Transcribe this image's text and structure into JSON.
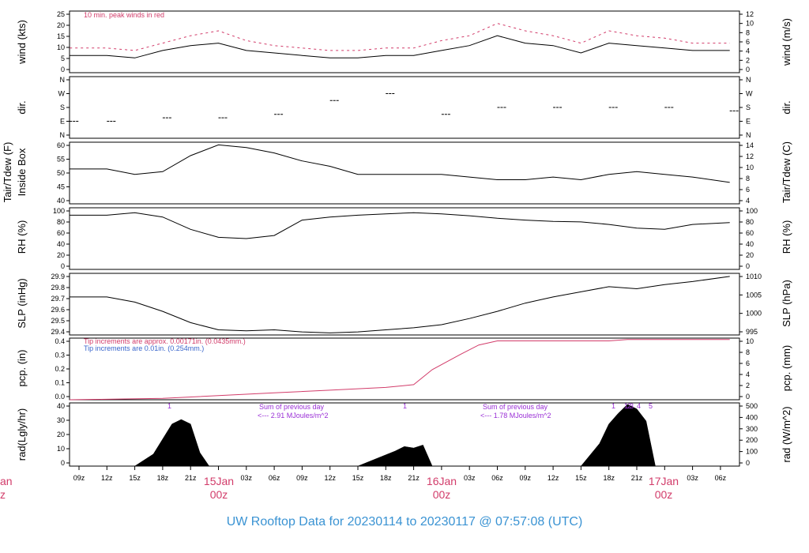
{
  "title": "UW Rooftop Data for 20230114  to  20230117 @ 07:57:08  (UTC)",
  "colors": {
    "accent": "#d23c6a",
    "title": "#3a93d3",
    "purple": "#9a2fd6",
    "blue": "#3a66cc"
  },
  "x_ticks": [
    "09z",
    "12z",
    "15z",
    "18z",
    "21z",
    "03z",
    "06z",
    "09z",
    "12z",
    "15z",
    "18z",
    "21z",
    "03z",
    "06z",
    "09z",
    "12z",
    "15z",
    "18z",
    "21z",
    "03z",
    "06z"
  ],
  "day_labels": [
    {
      "day": "15Jan",
      "hour": "00z"
    },
    {
      "day": "16Jan",
      "hour": "00z"
    },
    {
      "day": "17Jan",
      "hour": "00z"
    }
  ],
  "left_edge_labels": {
    "day": "an",
    "hour": "z"
  },
  "panels": {
    "wind": {
      "ylabel_left": "wind (kts)",
      "ylabel_right": "wind (m/s)",
      "left_ticks": [
        "25",
        "20",
        "15",
        "10",
        "5",
        "0"
      ],
      "right_ticks": [
        "12",
        "10",
        "8",
        "6",
        "4",
        "2",
        "0"
      ],
      "note": "10 min. peak winds in red"
    },
    "dir": {
      "ylabel_left": "dir.",
      "ylabel_right": "dir.",
      "left_ticks": [
        "N",
        "W",
        "S",
        "E",
        "N"
      ],
      "right_ticks": [
        "N",
        "W",
        "S",
        "E",
        "N"
      ]
    },
    "temp": {
      "ylabel_left_1": "Tair/Tdew (F)",
      "ylabel_left_2": "Inside Box",
      "ylabel_right": "Tair/Tdew (C)",
      "left_ticks": [
        "60",
        "55",
        "50",
        "45",
        "40"
      ],
      "right_ticks": [
        "14",
        "12",
        "10",
        "8",
        "6",
        "4"
      ]
    },
    "rh": {
      "ylabel_left": "RH (%)",
      "ylabel_right": "RH (%)",
      "left_ticks": [
        "100",
        "80",
        "60",
        "40",
        "20",
        "0"
      ],
      "right_ticks": [
        "100",
        "80",
        "60",
        "40",
        "20",
        "0"
      ]
    },
    "slp": {
      "ylabel_left": "SLP (inHg)",
      "ylabel_right": "SLP (hPa)",
      "left_ticks": [
        "29.9",
        "29.8",
        "29.7",
        "29.6",
        "29.5",
        "29.4"
      ],
      "right_ticks": [
        "1010",
        "1005",
        "1000",
        "995"
      ]
    },
    "pcp": {
      "ylabel_left": "pcp. (in)",
      "ylabel_right": "pcp. (mm)",
      "left_ticks": [
        "0.4",
        "0.3",
        "0.2",
        "0.1",
        "0.0"
      ],
      "right_ticks": [
        "10",
        "8",
        "6",
        "4",
        "2",
        "0"
      ],
      "note1": "Tip increments are approx. 0.00171in. (0.0435mm.)",
      "note2": "Tip increments are 0.01in. (0.254mm.)"
    },
    "rad": {
      "ylabel_left": "rad(Lgly/hr)",
      "ylabel_right": "rad (W/m^2)",
      "left_ticks": [
        "40",
        "30",
        "20",
        "10",
        "0"
      ],
      "right_ticks": [
        "500",
        "400",
        "300",
        "200",
        "100",
        "0"
      ],
      "sum1_a": "Sum of previous day",
      "sum1_b": "<--- 2.91 MJoules/m^2",
      "sum2_a": "Sum of previous day",
      "sum2_b": "<--- 1.78 MJoules/m^2",
      "markers": [
        "1",
        "1",
        "1",
        "1",
        "2",
        "3",
        "4",
        "5"
      ]
    }
  },
  "chart_data": [
    {
      "type": "line",
      "title": "",
      "ylabel": "wind (kts)",
      "ylim": [
        0,
        25
      ],
      "x": [
        "14Jan 08z",
        "14Jan 12z",
        "14Jan 15z",
        "14Jan 18z",
        "14Jan 21z",
        "15Jan 00z",
        "15Jan 03z",
        "15Jan 06z",
        "15Jan 09z",
        "15Jan 12z",
        "15Jan 15z",
        "15Jan 18z",
        "15Jan 21z",
        "16Jan 00z",
        "16Jan 03z",
        "16Jan 06z",
        "16Jan 09z",
        "16Jan 12z",
        "16Jan 15z",
        "16Jan 18z",
        "16Jan 21z",
        "17Jan 00z",
        "17Jan 03z",
        "17Jan 07z"
      ],
      "series": [
        {
          "values": [
            7,
            7,
            6,
            9,
            11,
            12,
            9,
            8,
            7,
            6,
            6,
            7,
            7,
            9,
            11,
            15,
            12,
            11,
            8,
            12,
            11,
            10,
            9,
            9
          ]
        },
        {
          "name": "10 min. peak winds in red",
          "values": [
            10,
            10,
            9,
            12,
            15,
            17,
            13,
            11,
            10,
            9,
            9,
            10,
            10,
            13,
            15,
            20,
            17,
            15,
            12,
            17,
            15,
            14,
            12,
            12
          ]
        }
      ]
    },
    {
      "type": "scatter",
      "ylabel": "dir.",
      "yticks": [
        "N",
        "E",
        "S",
        "W",
        "N"
      ],
      "x": [
        "14Jan 08z",
        "14Jan 12z",
        "14Jan 18z",
        "15Jan 00z",
        "15Jan 06z",
        "15Jan 12z",
        "15Jan 18z",
        "16Jan 00z",
        "16Jan 06z",
        "16Jan 12z",
        "16Jan 18z",
        "17Jan 00z",
        "17Jan 07z"
      ],
      "values": [
        "E",
        "E",
        "ESE",
        "ESE",
        "SE",
        "SW",
        "W",
        "SE",
        "S",
        "S",
        "S",
        "S",
        "SSE"
      ]
    },
    {
      "type": "line",
      "ylabel": "Tair/Tdew (F)",
      "ylim": [
        37,
        60
      ],
      "x": [
        "14Jan 08z",
        "14Jan 12z",
        "14Jan 15z",
        "14Jan 18z",
        "14Jan 21z",
        "15Jan 00z",
        "15Jan 03z",
        "15Jan 06z",
        "15Jan 09z",
        "15Jan 12z",
        "15Jan 15z",
        "15Jan 18z",
        "15Jan 21z",
        "16Jan 00z",
        "16Jan 03z",
        "16Jan 06z",
        "16Jan 09z",
        "16Jan 12z",
        "16Jan 15z",
        "16Jan 18z",
        "16Jan 21z",
        "17Jan 00z",
        "17Jan 03z",
        "17Jan 07z"
      ],
      "series": [
        {
          "values": [
            50,
            50,
            48,
            49,
            55,
            59,
            58,
            56,
            53,
            51,
            48,
            48,
            48,
            48,
            47,
            46,
            46,
            47,
            46,
            48,
            49,
            48,
            47,
            45
          ]
        }
      ]
    },
    {
      "type": "line",
      "ylabel": "RH (%)",
      "ylim": [
        0,
        100
      ],
      "x": [
        "14Jan 08z",
        "14Jan 12z",
        "14Jan 15z",
        "14Jan 18z",
        "14Jan 21z",
        "15Jan 00z",
        "15Jan 03z",
        "15Jan 06z",
        "15Jan 09z",
        "15Jan 12z",
        "15Jan 15z",
        "15Jan 18z",
        "15Jan 21z",
        "16Jan 00z",
        "16Jan 03z",
        "16Jan 06z",
        "16Jan 09z",
        "16Jan 12z",
        "16Jan 15z",
        "16Jan 18z",
        "16Jan 21z",
        "17Jan 00z",
        "17Jan 03z",
        "17Jan 07z"
      ],
      "series": [
        {
          "values": [
            88,
            88,
            92,
            85,
            65,
            52,
            50,
            55,
            80,
            85,
            88,
            90,
            92,
            90,
            87,
            83,
            80,
            78,
            77,
            73,
            67,
            65,
            73,
            76
          ]
        }
      ]
    },
    {
      "type": "line",
      "ylabel": "SLP (inHg)",
      "ylim": [
        29.35,
        29.95
      ],
      "x": [
        "14Jan 08z",
        "14Jan 12z",
        "14Jan 15z",
        "14Jan 18z",
        "14Jan 21z",
        "15Jan 00z",
        "15Jan 03z",
        "15Jan 06z",
        "15Jan 09z",
        "15Jan 12z",
        "15Jan 15z",
        "15Jan 18z",
        "15Jan 21z",
        "16Jan 00z",
        "16Jan 03z",
        "16Jan 06z",
        "16Jan 09z",
        "16Jan 12z",
        "16Jan 15z",
        "16Jan 18z",
        "16Jan 21z",
        "17Jan 00z",
        "17Jan 03z",
        "17Jan 07z"
      ],
      "series": [
        {
          "values": [
            29.72,
            29.72,
            29.67,
            29.58,
            29.47,
            29.4,
            29.39,
            29.4,
            29.38,
            29.37,
            29.38,
            29.4,
            29.42,
            29.45,
            29.51,
            29.58,
            29.66,
            29.72,
            29.77,
            29.82,
            29.8,
            29.84,
            29.87,
            29.92
          ]
        }
      ]
    },
    {
      "type": "line",
      "ylabel": "pcp. (in)",
      "ylim": [
        0,
        0.45
      ],
      "x": [
        "14Jan 08z",
        "14Jan 18z",
        "15Jan 00z",
        "15Jan 06z",
        "15Jan 12z",
        "15Jan 18z",
        "15Jan 21z",
        "15Jan 23z",
        "16Jan 02z",
        "16Jan 04z",
        "16Jan 06z",
        "16Jan 12z",
        "16Jan 18z",
        "16Jan 20z",
        "17Jan 07z"
      ],
      "series": [
        {
          "name": "Tip increments are approx. 0.00171in. (0.0435mm.)",
          "values": [
            0.0,
            0.01,
            0.03,
            0.05,
            0.07,
            0.09,
            0.11,
            0.22,
            0.33,
            0.4,
            0.43,
            0.43,
            0.43,
            0.44,
            0.44
          ]
        }
      ]
    },
    {
      "type": "area",
      "ylabel": "rad(Lgly/hr)",
      "ylim": [
        0,
        42
      ],
      "x": [
        "14Jan 15z",
        "14Jan 17z",
        "14Jan 19z",
        "14Jan 20z",
        "14Jan 21z",
        "14Jan 22z",
        "14Jan 23z",
        "15Jan 15z",
        "15Jan 17z",
        "15Jan 19z",
        "15Jan 20z",
        "15Jan 21z",
        "15Jan 22z",
        "15Jan 23z",
        "16Jan 15z",
        "16Jan 17z",
        "16Jan 18z",
        "16Jan 19z",
        "16Jan 20z",
        "16Jan 21z",
        "16Jan 22z",
        "16Jan 23z"
      ],
      "series": [
        {
          "values": [
            0,
            8,
            28,
            31,
            28,
            9,
            0,
            0,
            5,
            10,
            13,
            12,
            14,
            0,
            0,
            15,
            28,
            35,
            41,
            38,
            30,
            0
          ]
        }
      ]
    }
  ]
}
